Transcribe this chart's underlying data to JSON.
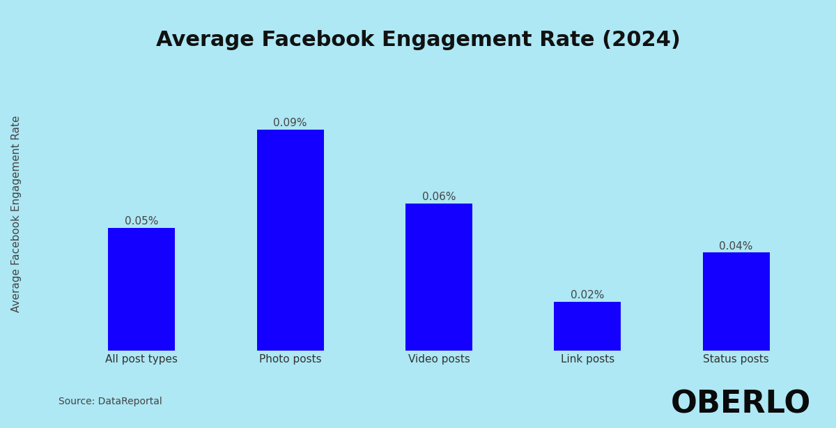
{
  "title": "Average Facebook Engagement Rate (2024)",
  "categories": [
    "All post types",
    "Photo posts",
    "Video posts",
    "Link posts",
    "Status posts"
  ],
  "values": [
    0.0005,
    0.0009,
    0.0006,
    0.0002,
    0.0004
  ],
  "value_labels": [
    "0.05%",
    "0.09%",
    "0.06%",
    "0.02%",
    "0.04%"
  ],
  "bar_color": "#1400FF",
  "background_color": "#ADE8F4",
  "ylabel": "Average Facebook Engagement Rate",
  "source_text": "Source: DataReportal",
  "brand_text": "OBERLO",
  "title_fontsize": 22,
  "label_fontsize": 11,
  "ylabel_fontsize": 11,
  "source_fontsize": 10,
  "brand_fontsize": 32,
  "ylim": [
    0,
    0.00108
  ],
  "bar_width": 0.45
}
